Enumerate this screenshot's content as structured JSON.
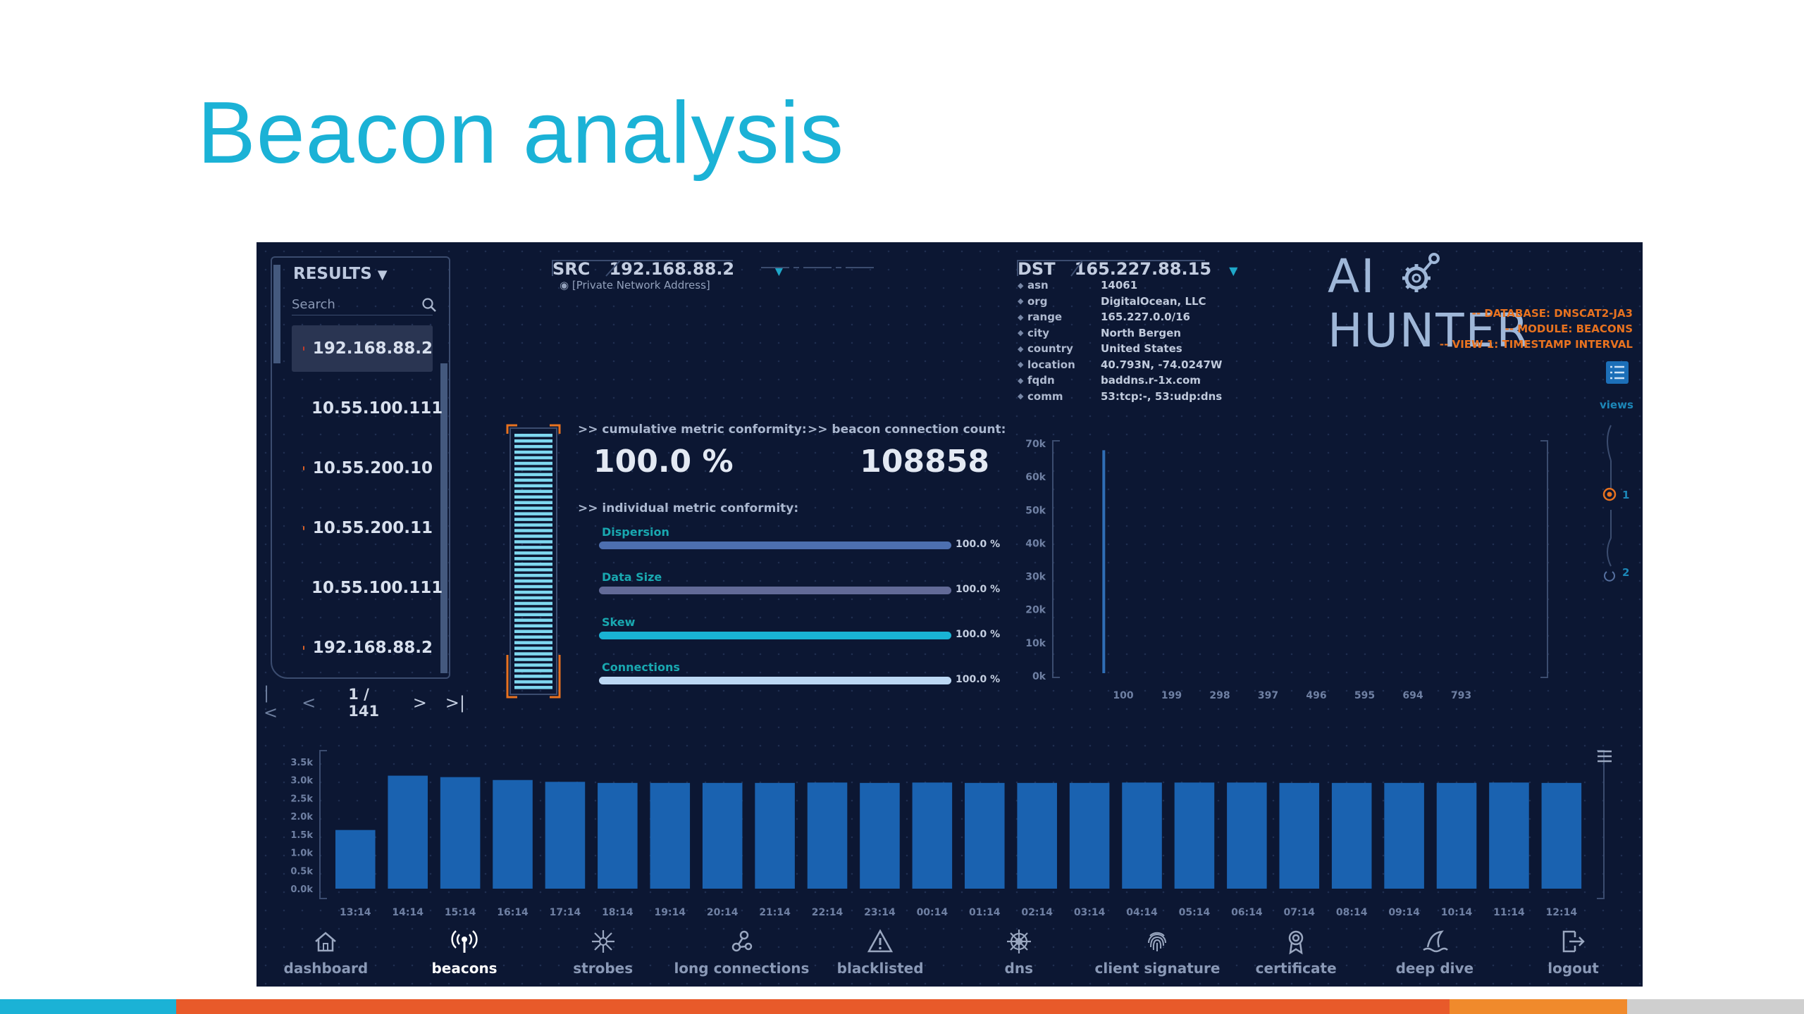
{
  "slide": {
    "title": "Beacon analysis"
  },
  "results": {
    "header": "RESULTS",
    "header_arrow": "▼",
    "search_placeholder": "Search",
    "items": [
      {
        "ip": "192.168.88.2",
        "selected": true
      },
      {
        "ip": "10.55.100.111"
      },
      {
        "ip": "10.55.200.10"
      },
      {
        "ip": "10.55.200.11"
      },
      {
        "ip": "10.55.100.111"
      },
      {
        "ip": "192.168.88.2"
      }
    ],
    "pager": {
      "first": "|<",
      "prev": "<",
      "text": "1 / 141",
      "next": ">",
      "last": ">|"
    }
  },
  "src": {
    "label": "SRC",
    "ip": "192.168.88.2",
    "note": "[Private Network Address]"
  },
  "dst": {
    "label": "DST",
    "ip": "165.227.88.15",
    "info": [
      {
        "key": "asn",
        "value": "14061"
      },
      {
        "key": "org",
        "value": "DigitalOcean, LLC"
      },
      {
        "key": "range",
        "value": "165.227.0.0/16"
      },
      {
        "key": "city",
        "value": "North Bergen"
      },
      {
        "key": "country",
        "value": "United States"
      },
      {
        "key": "location",
        "value": "40.793N, -74.0247W"
      },
      {
        "key": "fqdn",
        "value": "baddns.r-1x.com"
      },
      {
        "key": "comm",
        "value": "53:tcp:-, 53:udp:dns"
      }
    ]
  },
  "logo": {
    "left": "AI",
    "right": "HUNTER"
  },
  "context": {
    "database": "-- DATABASE: DNSCAT2-JA3",
    "module": "-- MODULE: BEACONS",
    "view": "-- VIEW 1: TIMESTAMP INTERVAL"
  },
  "views": {
    "label": "views",
    "options": [
      "1",
      "2"
    ],
    "selected": "1"
  },
  "metrics": {
    "cumulative_label": ">> cumulative metric conformity:",
    "cumulative_value": "100.0 %",
    "count_label": ">> beacon connection count:",
    "count_value": "108858",
    "individual_label": ">> individual metric conformity:",
    "gauge_fill": 1.0,
    "bars": [
      {
        "name": "Dispersion",
        "value": "100.0 %",
        "fill": 1.0,
        "color": "#4d6fb0"
      },
      {
        "name": "Data Size",
        "value": "100.0 %",
        "fill": 1.0,
        "color": "#626a97"
      },
      {
        "name": "Skew",
        "value": "100.0 %",
        "fill": 1.0,
        "color": "#19b3d4"
      },
      {
        "name": "Connections",
        "value": "100.0 %",
        "fill": 1.0,
        "color": "#bcd8f4"
      }
    ]
  },
  "scatter": {
    "y_ticks": [
      "70k",
      "60k",
      "50k",
      "40k",
      "30k",
      "20k",
      "10k",
      "0k"
    ],
    "x_ticks": [
      "100",
      "199",
      "298",
      "397",
      "496",
      "595",
      "694",
      "793"
    ]
  },
  "chart_data": [
    {
      "type": "scatter",
      "title": "",
      "xlabel": "",
      "ylabel": "",
      "ylim": [
        0,
        70000
      ],
      "x_ticks": [
        "100",
        "199",
        "298",
        "397",
        "496",
        "595",
        "694",
        "793"
      ],
      "y_ticks": [
        "0k",
        "10k",
        "20k",
        "30k",
        "40k",
        "50k",
        "60k",
        "70k"
      ],
      "points": [
        {
          "x": 60,
          "y": 68000
        }
      ]
    },
    {
      "type": "bar",
      "title": "",
      "xlabel": "",
      "ylabel": "",
      "ylim": [
        0,
        3500
      ],
      "y_ticks": [
        "0.0k",
        "0.5k",
        "1.0k",
        "1.5k",
        "2.0k",
        "2.5k",
        "3.0k",
        "3.5k"
      ],
      "categories": [
        "13:14",
        "14:14",
        "15:14",
        "16:14",
        "17:14",
        "18:14",
        "19:14",
        "20:14",
        "21:14",
        "22:14",
        "23:14",
        "00:14",
        "01:14",
        "02:14",
        "03:14",
        "04:14",
        "05:14",
        "06:14",
        "07:14",
        "08:14",
        "09:14",
        "10:14",
        "11:14",
        "12:14"
      ],
      "values": [
        1620,
        3120,
        3080,
        3000,
        2950,
        2920,
        2920,
        2920,
        2920,
        2930,
        2920,
        2930,
        2920,
        2920,
        2920,
        2930,
        2930,
        2930,
        2920,
        2920,
        2920,
        2920,
        2930,
        2920
      ]
    }
  ],
  "nav": [
    {
      "label": "dashboard",
      "icon": "home-icon"
    },
    {
      "label": "beacons",
      "icon": "broadcast-icon",
      "active": true
    },
    {
      "label": "strobes",
      "icon": "strobe-icon"
    },
    {
      "label": "long connections",
      "icon": "connections-icon"
    },
    {
      "label": "blacklisted",
      "icon": "warning-icon"
    },
    {
      "label": "dns",
      "icon": "dns-wheel-icon"
    },
    {
      "label": "client signature",
      "icon": "fingerprint-icon"
    },
    {
      "label": "certificate",
      "icon": "certificate-icon"
    },
    {
      "label": "deep dive",
      "icon": "shark-fin-icon"
    },
    {
      "label": "logout",
      "icon": "logout-icon"
    }
  ],
  "colors": {
    "title": "#1bb2d6",
    "app_bg": "#0c1733",
    "accent_orange": "#e8721f",
    "bar_blue": "#1a62b0",
    "strip": [
      "#1bb2d6",
      "#e85a2a",
      "#f08a2c",
      "#cfcfcf"
    ]
  }
}
